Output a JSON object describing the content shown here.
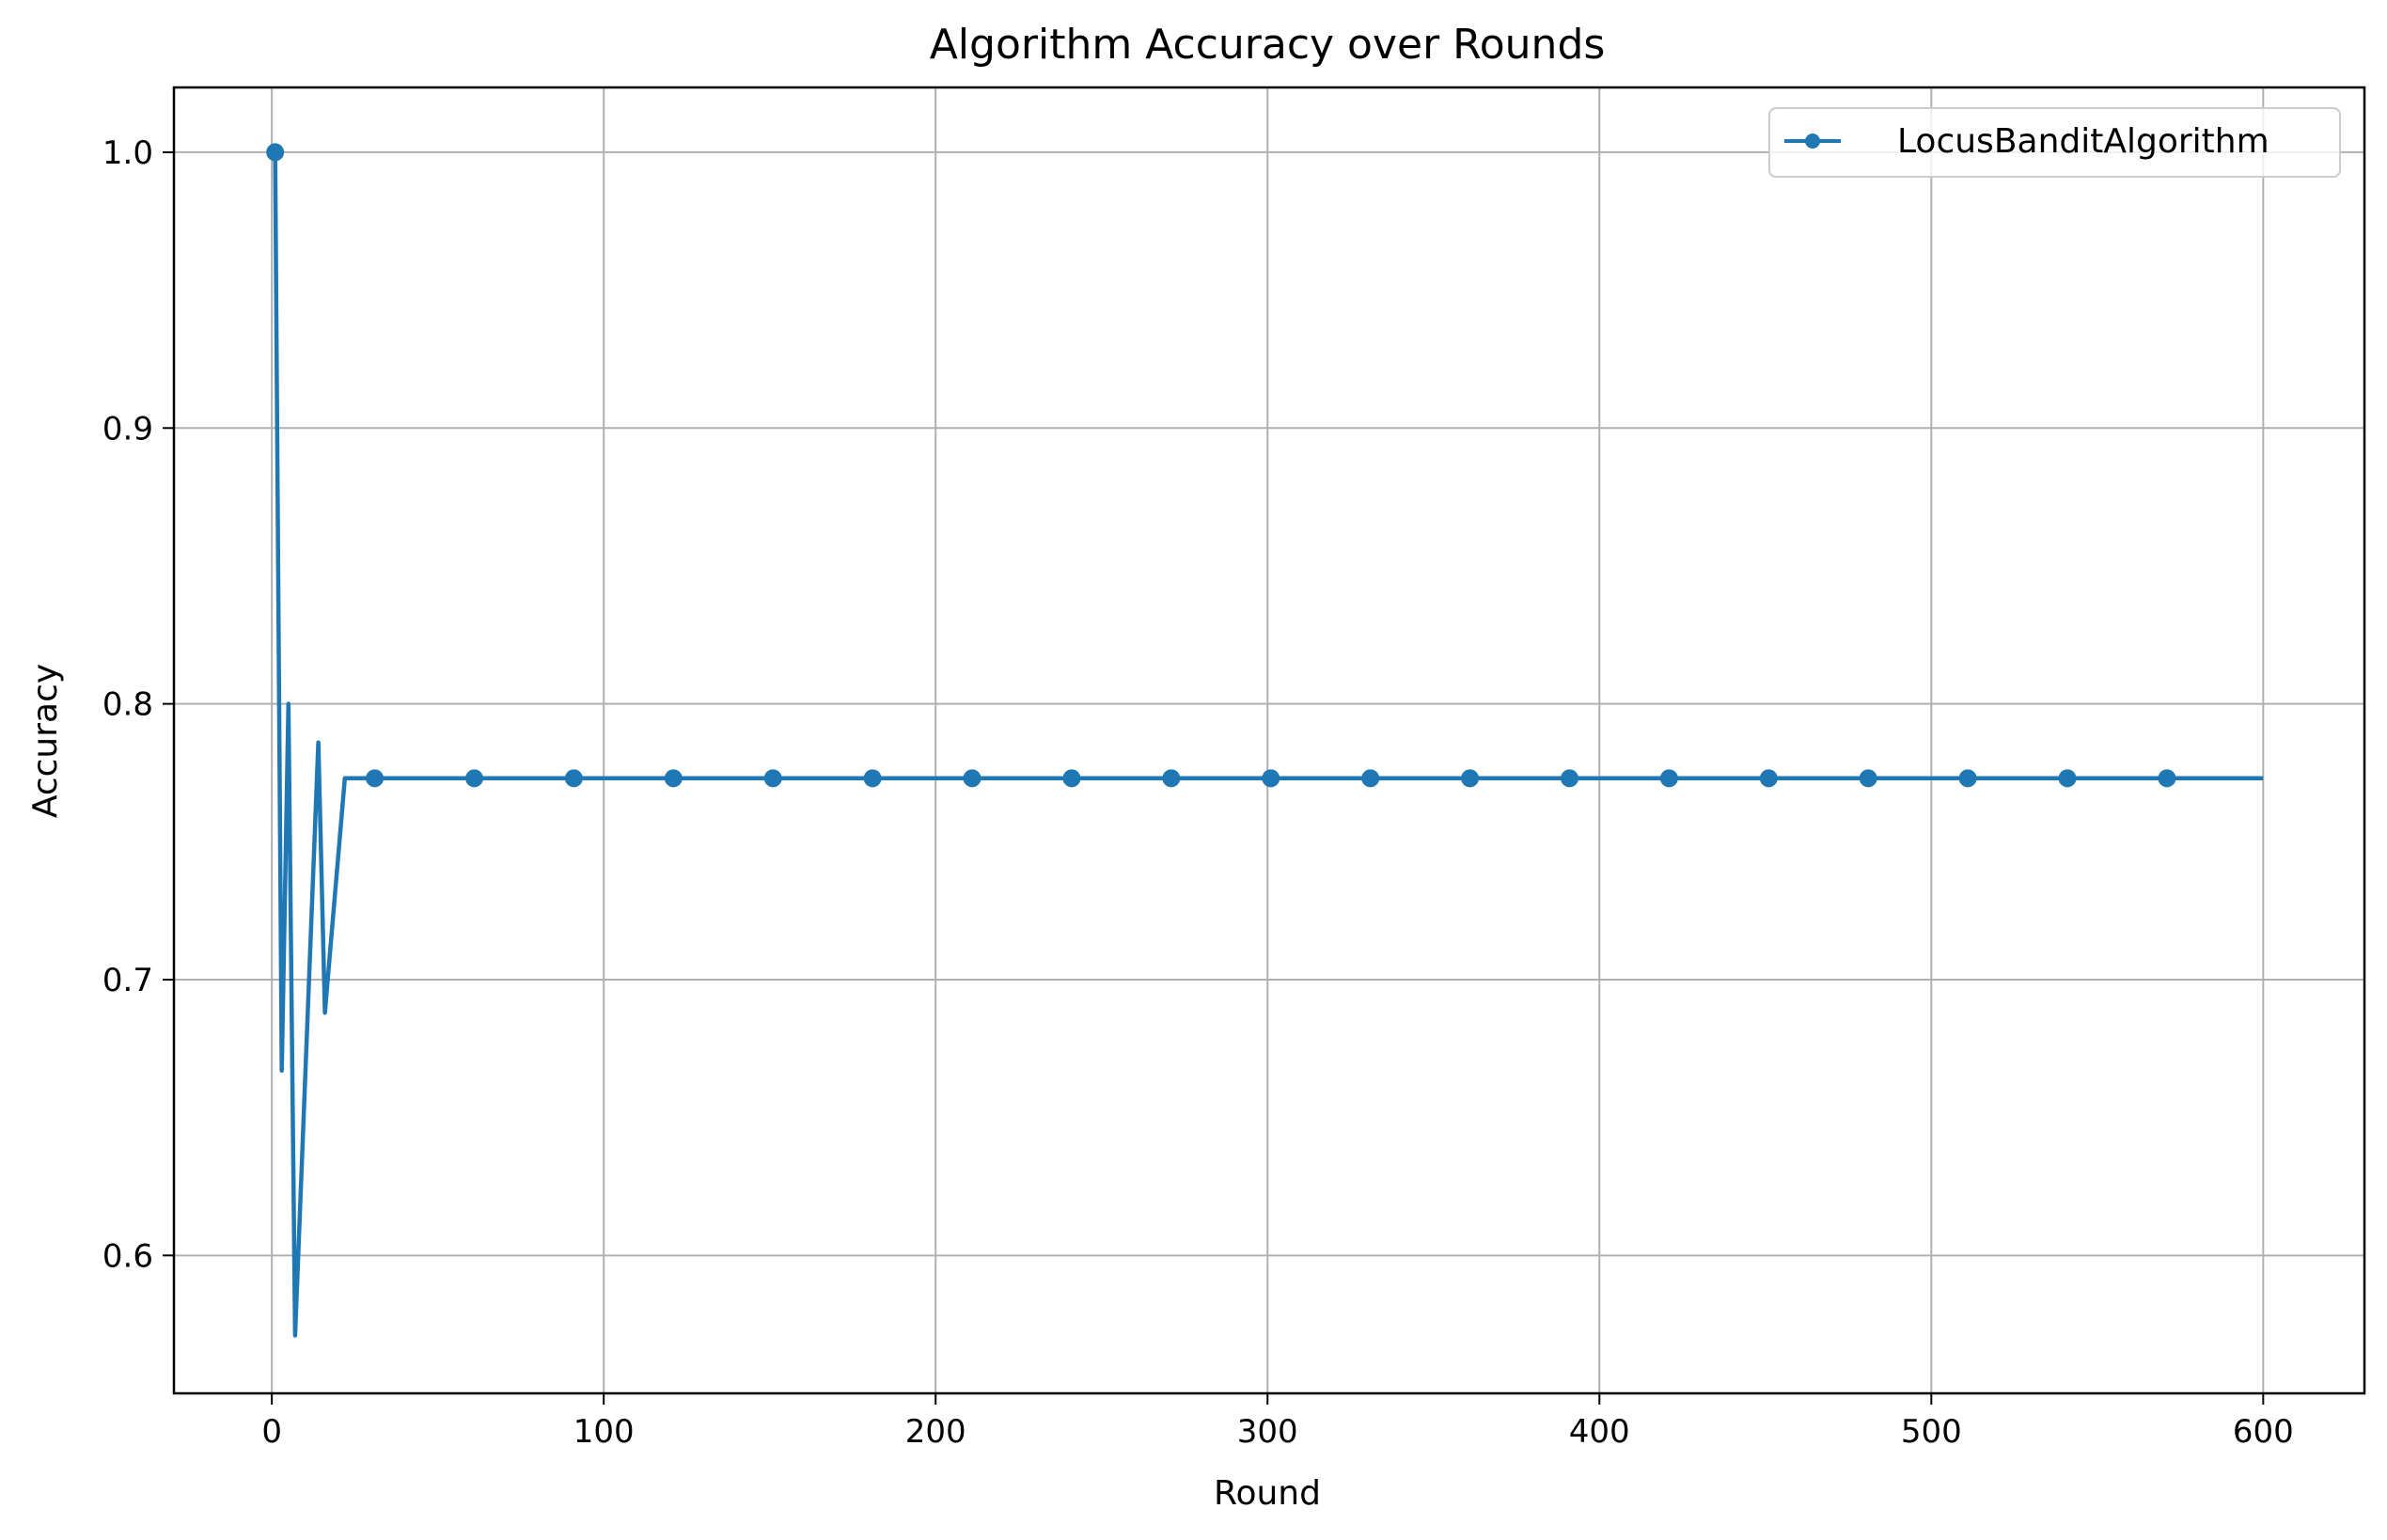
{
  "chart_data": {
    "type": "line",
    "title": "Algorithm Accuracy over Rounds",
    "xlabel": "Round",
    "ylabel": "Accuracy",
    "xlim": [
      -29.5,
      630.5
    ],
    "ylim": [
      0.55,
      1.0235
    ],
    "xticks": [
      0,
      100,
      200,
      300,
      400,
      500,
      600
    ],
    "xtick_labels": [
      "0",
      "100",
      "200",
      "300",
      "400",
      "500",
      "600"
    ],
    "yticks": [
      0.6,
      0.7,
      0.8,
      0.9,
      1.0
    ],
    "ytick_labels": [
      "0.6",
      "0.7",
      "0.8",
      "0.9",
      "1.0"
    ],
    "grid": true,
    "legend_position": "top-right",
    "series": [
      {
        "name": "LocusBanditAlgorithm",
        "color": "#1f77b4",
        "marker": "circle",
        "x": [
          1,
          3,
          5,
          7,
          14,
          16,
          22,
          31,
          61,
          91,
          121,
          151,
          181,
          211,
          241,
          271,
          301,
          331,
          361,
          391,
          421,
          451,
          481,
          511,
          541,
          571,
          600
        ],
        "y": [
          1.0,
          0.667,
          0.8,
          0.571,
          0.786,
          0.688,
          0.773,
          0.773,
          0.773,
          0.773,
          0.773,
          0.773,
          0.773,
          0.773,
          0.773,
          0.773,
          0.773,
          0.773,
          0.773,
          0.773,
          0.773,
          0.773,
          0.773,
          0.773,
          0.773,
          0.773,
          0.773
        ],
        "marker_x": [
          1,
          31,
          61,
          91,
          121,
          151,
          181,
          211,
          241,
          271,
          301,
          331,
          361,
          391,
          421,
          451,
          481,
          511,
          541,
          571
        ],
        "marker_y": [
          1.0,
          0.773,
          0.773,
          0.773,
          0.773,
          0.773,
          0.773,
          0.773,
          0.773,
          0.773,
          0.773,
          0.773,
          0.773,
          0.773,
          0.773,
          0.773,
          0.773,
          0.773,
          0.773,
          0.773
        ]
      }
    ]
  }
}
